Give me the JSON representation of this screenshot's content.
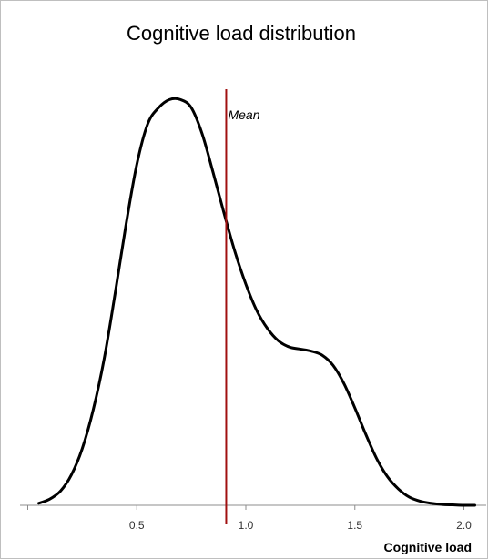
{
  "chart_data": {
    "type": "line",
    "title": "Cognitive load distribution",
    "xlabel": "Cognitive load",
    "ylabel": "",
    "xlim": [
      0.0,
      2.05
    ],
    "ylim": [
      0,
      1.03
    ],
    "xticks": [
      0.5,
      1.0,
      1.5,
      2.0
    ],
    "xtick_labels": [
      "0.5",
      "1.0",
      "1.5",
      "2.0"
    ],
    "grid": false,
    "series": [
      {
        "color": "#000000",
        "x": [
          0.05,
          0.1,
          0.15,
          0.2,
          0.25,
          0.3,
          0.35,
          0.4,
          0.45,
          0.5,
          0.55,
          0.6,
          0.65,
          0.7,
          0.75,
          0.8,
          0.85,
          0.9,
          0.95,
          1.0,
          1.05,
          1.1,
          1.15,
          1.2,
          1.25,
          1.3,
          1.35,
          1.4,
          1.45,
          1.5,
          1.55,
          1.6,
          1.65,
          1.7,
          1.75,
          1.8,
          1.85,
          1.9,
          1.95,
          2.0,
          2.05
        ],
        "y": [
          0.005,
          0.015,
          0.035,
          0.075,
          0.14,
          0.235,
          0.36,
          0.52,
          0.69,
          0.84,
          0.94,
          0.98,
          1.0,
          1.0,
          0.98,
          0.915,
          0.82,
          0.72,
          0.625,
          0.545,
          0.48,
          0.435,
          0.405,
          0.39,
          0.385,
          0.38,
          0.37,
          0.345,
          0.3,
          0.24,
          0.175,
          0.115,
          0.07,
          0.04,
          0.02,
          0.01,
          0.005,
          0.002,
          0.001,
          0.0,
          0.0
        ]
      }
    ],
    "annotations": [
      {
        "type": "vline",
        "x": 0.91,
        "label": "Mean",
        "color": "#a01010"
      }
    ]
  }
}
